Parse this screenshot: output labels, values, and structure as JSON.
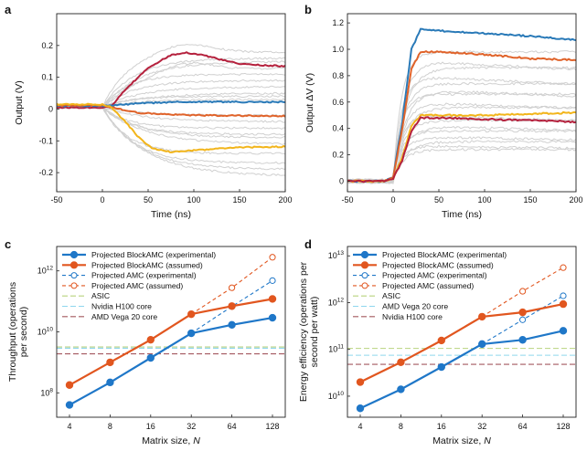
{
  "chart_data": [
    {
      "panel": "a",
      "type": "line",
      "xlabel": "Time (ns)",
      "ylabel": "Output (V)",
      "xlim": [
        -50,
        200
      ],
      "ylim": [
        -0.26,
        0.3
      ],
      "xticks": [
        "-50",
        "0",
        "50",
        "100",
        "150",
        "200"
      ],
      "yticks": [
        "-0.2",
        "-0.1",
        "0",
        "0.1",
        "0.2"
      ],
      "background_trace_color": "#d0d0d0",
      "background_finals": [
        0.18,
        0.16,
        0.15,
        0.13,
        0.11,
        0.09,
        0.07,
        0.05,
        0.04,
        0.03,
        -0.02,
        -0.04,
        -0.06,
        -0.08,
        -0.09,
        -0.11,
        -0.14,
        -0.17,
        -0.19,
        -0.21
      ],
      "series": [
        {
          "color": "#b5213d",
          "x": [
            -50,
            0,
            10,
            25,
            50,
            75,
            90,
            110,
            130,
            150,
            175,
            200
          ],
          "values": [
            0.005,
            0.005,
            0.01,
            0.06,
            0.13,
            0.17,
            0.178,
            0.17,
            0.155,
            0.142,
            0.138,
            0.135
          ]
        },
        {
          "color": "#2a7ab8",
          "x": [
            -50,
            0,
            15,
            40,
            80,
            120,
            160,
            200
          ],
          "values": [
            0.01,
            0.01,
            0.012,
            0.018,
            0.022,
            0.023,
            0.022,
            0.022
          ]
        },
        {
          "color": "#e0632a",
          "x": [
            -50,
            0,
            15,
            40,
            80,
            120,
            160,
            200
          ],
          "values": [
            0.012,
            0.012,
            0.002,
            -0.012,
            -0.018,
            -0.02,
            -0.021,
            -0.022
          ]
        },
        {
          "color": "#f2b51b",
          "x": [
            -50,
            0,
            10,
            25,
            40,
            55,
            75,
            100,
            125,
            150,
            175,
            200
          ],
          "values": [
            0.015,
            0.015,
            0.005,
            -0.04,
            -0.09,
            -0.125,
            -0.135,
            -0.13,
            -0.125,
            -0.12,
            -0.12,
            -0.118
          ]
        }
      ]
    },
    {
      "panel": "b",
      "type": "line",
      "xlabel": "Time (ns)",
      "ylabel": "Output ΔV (V)",
      "xlim": [
        -50,
        200
      ],
      "ylim": [
        -0.08,
        1.27
      ],
      "xticks": [
        "-50",
        "0",
        "50",
        "100",
        "150",
        "200"
      ],
      "yticks": [
        "0",
        "0.2",
        "0.4",
        "0.6",
        "0.8",
        "1.0",
        "1.2"
      ],
      "background_trace_color": "#d0d0d0",
      "background_finals": [
        0.98,
        0.92,
        0.86,
        0.8,
        0.74,
        0.7,
        0.66,
        0.6,
        0.56,
        0.5,
        0.46,
        0.42,
        0.38,
        0.34,
        0.3,
        0.27,
        0.24
      ],
      "series": [
        {
          "color": "#2a7ab8",
          "x": [
            -50,
            -10,
            0,
            10,
            20,
            30,
            50,
            100,
            150,
            200
          ],
          "values": [
            0,
            0,
            0.03,
            0.45,
            1.0,
            1.15,
            1.14,
            1.12,
            1.1,
            1.07
          ]
        },
        {
          "color": "#e0632a",
          "x": [
            -50,
            -10,
            0,
            10,
            20,
            30,
            50,
            100,
            150,
            200
          ],
          "values": [
            0,
            0,
            0.03,
            0.4,
            0.85,
            0.98,
            0.98,
            0.96,
            0.93,
            0.92
          ]
        },
        {
          "color": "#f2b51b",
          "x": [
            -50,
            -10,
            0,
            10,
            20,
            30,
            50,
            100,
            150,
            200
          ],
          "values": [
            0,
            0,
            0.02,
            0.18,
            0.42,
            0.5,
            0.5,
            0.5,
            0.51,
            0.52
          ]
        },
        {
          "color": "#b5213d",
          "x": [
            -50,
            -10,
            0,
            10,
            20,
            30,
            50,
            100,
            150,
            200
          ],
          "values": [
            0,
            0,
            0.02,
            0.16,
            0.38,
            0.48,
            0.48,
            0.47,
            0.46,
            0.45
          ]
        }
      ]
    },
    {
      "panel": "c",
      "type": "line",
      "xlabel": "Matrix size, N",
      "ylabel": "Throughput (operations per second)",
      "yscale": "log",
      "ylim_log10": [
        7.2,
        12.8
      ],
      "categories": [
        "4",
        "8",
        "16",
        "32",
        "64",
        "128"
      ],
      "yticks": [
        {
          "label": "10",
          "exp": "8",
          "log10": 8
        },
        {
          "label": "10",
          "exp": "10",
          "log10": 10
        },
        {
          "label": "10",
          "exp": "12",
          "log10": 12
        }
      ],
      "series": [
        {
          "name": "Projected BlockAMC (experimental)",
          "color": "#1f77c8",
          "style": "solid-filled",
          "values": [
            40000000.0,
            220000000.0,
            1400000000.0,
            9000000000.0,
            17000000000.0,
            29000000000.0
          ]
        },
        {
          "name": "Projected BlockAMC (assumed)",
          "color": "#e1561f",
          "style": "solid-filled",
          "values": [
            180000000.0,
            1000000000.0,
            5500000000.0,
            38000000000.0,
            70000000000.0,
            120000000000.0
          ]
        },
        {
          "name": "Projected AMC (experimental)",
          "color": "#1f77c8",
          "style": "dashed-open",
          "values": [
            null,
            null,
            null,
            9000000000.0,
            68000000000.0,
            480000000000.0
          ]
        },
        {
          "name": "Projected AMC (assumed)",
          "color": "#e1561f",
          "style": "dashed-open",
          "values": [
            null,
            null,
            null,
            38000000000.0,
            280000000000.0,
            2800000000000.0
          ]
        }
      ],
      "reference_lines": [
        {
          "name": "ASIC",
          "color": "#b9d27f",
          "value": 3200000000.0
        },
        {
          "name": "Nvidia H100 core",
          "color": "#8fd6ee",
          "value": 2900000000.0
        },
        {
          "name": "AMD Vega 20 core",
          "color": "#a3585f",
          "value": 1900000000.0
        }
      ]
    },
    {
      "panel": "d",
      "type": "line",
      "xlabel": "Matrix size, N",
      "ylabel": "Energy efficiency (operations per second per watt)",
      "yscale": "log",
      "ylim_log10": [
        9.55,
        13.2
      ],
      "categories": [
        "4",
        "8",
        "16",
        "32",
        "64",
        "128"
      ],
      "yticks": [
        {
          "label": "10",
          "exp": "10",
          "log10": 10
        },
        {
          "label": "10",
          "exp": "11",
          "log10": 11
        },
        {
          "label": "10",
          "exp": "12",
          "log10": 12
        },
        {
          "label": "10",
          "exp": "13",
          "log10": 13
        }
      ],
      "series": [
        {
          "name": "Projected BlockAMC (experimental)",
          "color": "#1f77c8",
          "style": "solid-filled",
          "values": [
            5500000000.0,
            14000000000.0,
            42000000000.0,
            130000000000.0,
            160000000000.0,
            250000000000.0
          ]
        },
        {
          "name": "Projected BlockAMC (assumed)",
          "color": "#e1561f",
          "style": "solid-filled",
          "values": [
            20000000000.0,
            53000000000.0,
            155000000000.0,
            500000000000.0,
            620000000000.0,
            930000000000.0
          ]
        },
        {
          "name": "Projected AMC (experimental)",
          "color": "#1f77c8",
          "style": "dashed-open",
          "values": [
            null,
            null,
            null,
            130000000000.0,
            430000000000.0,
            1400000000000.0
          ]
        },
        {
          "name": "Projected AMC (assumed)",
          "color": "#e1561f",
          "style": "dashed-open",
          "values": [
            null,
            null,
            null,
            500000000000.0,
            1750000000000.0,
            5600000000000.0
          ]
        }
      ],
      "reference_lines": [
        {
          "name": "ASIC",
          "color": "#b9d27f",
          "value": 105000000000.0
        },
        {
          "name": "AMD Vega 20 core",
          "color": "#8fd6ee",
          "value": 75000000000.0
        },
        {
          "name": "Nvidia H100 core",
          "color": "#a3585f",
          "value": 48000000000.0
        }
      ]
    }
  ]
}
